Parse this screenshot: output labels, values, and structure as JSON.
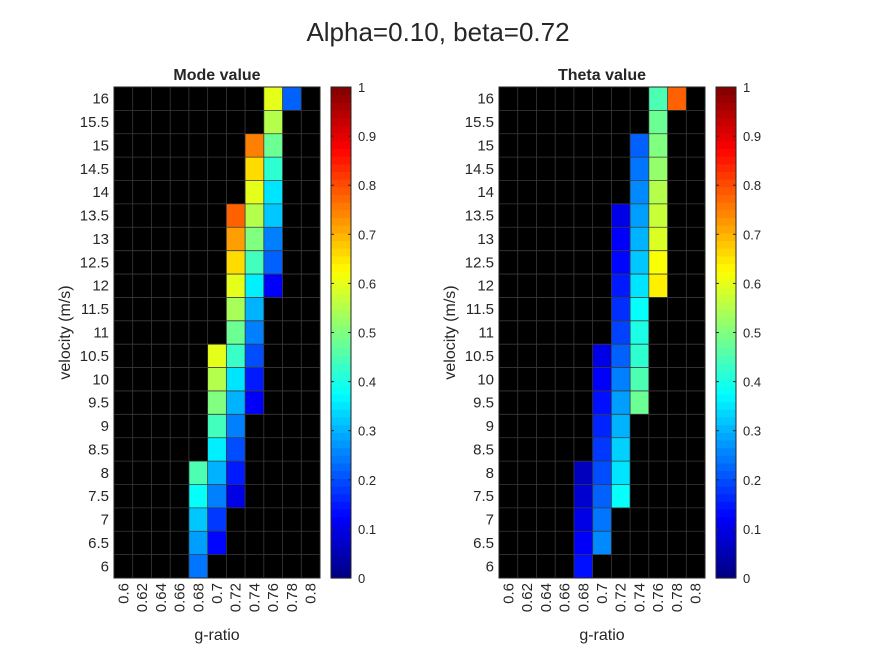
{
  "figure": {
    "suptitle": "Alpha=0.10, beta=0.72"
  },
  "chart_data": [
    {
      "type": "heatmap",
      "title": "Mode value",
      "xlabel": "g-ratio",
      "ylabel": "velocity (m/s)",
      "x_categories": [
        "0.6",
        "0.62",
        "0.64",
        "0.66",
        "0.68",
        "0.7",
        "0.72",
        "0.74",
        "0.76",
        "0.78",
        "0.8"
      ],
      "y_categories": [
        "16",
        "15.5",
        "15",
        "14.5",
        "14",
        "13.5",
        "13",
        "12.5",
        "12",
        "11.5",
        "11",
        "10.5",
        "10",
        "9.5",
        "9",
        "8.5",
        "8",
        "7.5",
        "7",
        "6.5",
        "6"
      ],
      "colorbar": {
        "colormap": "jet",
        "range": [
          0,
          1
        ],
        "ticks": [
          "0",
          "0.1",
          "0.2",
          "0.3",
          "0.4",
          "0.5",
          "0.6",
          "0.7",
          "0.8",
          "0.9",
          "1"
        ]
      },
      "background_color": "#000000",
      "grid": true,
      "cells": [
        {
          "y": "16",
          "x": "0.76",
          "v": 0.6
        },
        {
          "y": "16",
          "x": "0.78",
          "v": 0.22
        },
        {
          "y": "15.5",
          "x": "0.76",
          "v": 0.55
        },
        {
          "y": "15",
          "x": "0.74",
          "v": 0.75
        },
        {
          "y": "15",
          "x": "0.76",
          "v": 0.48
        },
        {
          "y": "14.5",
          "x": "0.74",
          "v": 0.66
        },
        {
          "y": "14.5",
          "x": "0.76",
          "v": 0.42
        },
        {
          "y": "14",
          "x": "0.74",
          "v": 0.6
        },
        {
          "y": "14",
          "x": "0.76",
          "v": 0.35
        },
        {
          "y": "13.5",
          "x": "0.72",
          "v": 0.78
        },
        {
          "y": "13.5",
          "x": "0.74",
          "v": 0.55
        },
        {
          "y": "13.5",
          "x": "0.76",
          "v": 0.32
        },
        {
          "y": "13",
          "x": "0.72",
          "v": 0.72
        },
        {
          "y": "13",
          "x": "0.74",
          "v": 0.5
        },
        {
          "y": "13",
          "x": "0.76",
          "v": 0.25
        },
        {
          "y": "12.5",
          "x": "0.72",
          "v": 0.66
        },
        {
          "y": "12.5",
          "x": "0.74",
          "v": 0.44
        },
        {
          "y": "12.5",
          "x": "0.76",
          "v": 0.22
        },
        {
          "y": "12",
          "x": "0.72",
          "v": 0.6
        },
        {
          "y": "12",
          "x": "0.74",
          "v": 0.36
        },
        {
          "y": "12",
          "x": "0.76",
          "v": 0.12
        },
        {
          "y": "11.5",
          "x": "0.72",
          "v": 0.54
        },
        {
          "y": "11.5",
          "x": "0.74",
          "v": 0.3
        },
        {
          "y": "11",
          "x": "0.72",
          "v": 0.48
        },
        {
          "y": "11",
          "x": "0.74",
          "v": 0.25
        },
        {
          "y": "10.5",
          "x": "0.7",
          "v": 0.6
        },
        {
          "y": "10.5",
          "x": "0.72",
          "v": 0.43
        },
        {
          "y": "10.5",
          "x": "0.74",
          "v": 0.2
        },
        {
          "y": "10",
          "x": "0.7",
          "v": 0.55
        },
        {
          "y": "10",
          "x": "0.72",
          "v": 0.35
        },
        {
          "y": "10",
          "x": "0.74",
          "v": 0.15
        },
        {
          "y": "9.5",
          "x": "0.7",
          "v": 0.5
        },
        {
          "y": "9.5",
          "x": "0.72",
          "v": 0.3
        },
        {
          "y": "9.5",
          "x": "0.74",
          "v": 0.12
        },
        {
          "y": "9",
          "x": "0.7",
          "v": 0.44
        },
        {
          "y": "9",
          "x": "0.72",
          "v": 0.25
        },
        {
          "y": "8.5",
          "x": "0.7",
          "v": 0.36
        },
        {
          "y": "8.5",
          "x": "0.72",
          "v": 0.2
        },
        {
          "y": "8",
          "x": "0.68",
          "v": 0.45
        },
        {
          "y": "8",
          "x": "0.7",
          "v": 0.3
        },
        {
          "y": "8",
          "x": "0.72",
          "v": 0.15
        },
        {
          "y": "7.5",
          "x": "0.68",
          "v": 0.38
        },
        {
          "y": "7.5",
          "x": "0.7",
          "v": 0.25
        },
        {
          "y": "7.5",
          "x": "0.72",
          "v": 0.1
        },
        {
          "y": "7",
          "x": "0.68",
          "v": 0.32
        },
        {
          "y": "7",
          "x": "0.7",
          "v": 0.18
        },
        {
          "y": "6.5",
          "x": "0.68",
          "v": 0.28
        },
        {
          "y": "6.5",
          "x": "0.7",
          "v": 0.13
        },
        {
          "y": "6",
          "x": "0.68",
          "v": 0.24
        }
      ]
    },
    {
      "type": "heatmap",
      "title": "Theta value",
      "xlabel": "g-ratio",
      "ylabel": "velocity (m/s)",
      "x_categories": [
        "0.6",
        "0.62",
        "0.64",
        "0.66",
        "0.68",
        "0.7",
        "0.72",
        "0.74",
        "0.76",
        "0.78",
        "0.8"
      ],
      "y_categories": [
        "16",
        "15.5",
        "15",
        "14.5",
        "14",
        "13.5",
        "13",
        "12.5",
        "12",
        "11.5",
        "11",
        "10.5",
        "10",
        "9.5",
        "9",
        "8.5",
        "8",
        "7.5",
        "7",
        "6.5",
        "6"
      ],
      "colorbar": {
        "colormap": "jet",
        "range": [
          0,
          1
        ],
        "ticks": [
          "0",
          "0.1",
          "0.2",
          "0.3",
          "0.4",
          "0.5",
          "0.6",
          "0.7",
          "0.8",
          "0.9",
          "1"
        ]
      },
      "background_color": "#000000",
      "grid": true,
      "cells": [
        {
          "y": "16",
          "x": "0.76",
          "v": 0.45
        },
        {
          "y": "16",
          "x": "0.78",
          "v": 0.78
        },
        {
          "y": "15.5",
          "x": "0.76",
          "v": 0.48
        },
        {
          "y": "15",
          "x": "0.74",
          "v": 0.22
        },
        {
          "y": "15",
          "x": "0.76",
          "v": 0.5
        },
        {
          "y": "14.5",
          "x": "0.74",
          "v": 0.24
        },
        {
          "y": "14.5",
          "x": "0.76",
          "v": 0.52
        },
        {
          "y": "14",
          "x": "0.74",
          "v": 0.26
        },
        {
          "y": "14",
          "x": "0.76",
          "v": 0.55
        },
        {
          "y": "13.5",
          "x": "0.72",
          "v": 0.1
        },
        {
          "y": "13.5",
          "x": "0.74",
          "v": 0.28
        },
        {
          "y": "13.5",
          "x": "0.76",
          "v": 0.57
        },
        {
          "y": "13",
          "x": "0.72",
          "v": 0.12
        },
        {
          "y": "13",
          "x": "0.74",
          "v": 0.3
        },
        {
          "y": "13",
          "x": "0.76",
          "v": 0.59
        },
        {
          "y": "12.5",
          "x": "0.72",
          "v": 0.13
        },
        {
          "y": "12.5",
          "x": "0.74",
          "v": 0.32
        },
        {
          "y": "12.5",
          "x": "0.76",
          "v": 0.62
        },
        {
          "y": "12",
          "x": "0.72",
          "v": 0.15
        },
        {
          "y": "12",
          "x": "0.74",
          "v": 0.35
        },
        {
          "y": "12",
          "x": "0.76",
          "v": 0.64
        },
        {
          "y": "11.5",
          "x": "0.72",
          "v": 0.17
        },
        {
          "y": "11.5",
          "x": "0.74",
          "v": 0.38
        },
        {
          "y": "11",
          "x": "0.72",
          "v": 0.19
        },
        {
          "y": "11",
          "x": "0.74",
          "v": 0.4
        },
        {
          "y": "10.5",
          "x": "0.7",
          "v": 0.1
        },
        {
          "y": "10.5",
          "x": "0.72",
          "v": 0.22
        },
        {
          "y": "10.5",
          "x": "0.74",
          "v": 0.42
        },
        {
          "y": "10",
          "x": "0.7",
          "v": 0.12
        },
        {
          "y": "10",
          "x": "0.72",
          "v": 0.25
        },
        {
          "y": "10",
          "x": "0.74",
          "v": 0.45
        },
        {
          "y": "9.5",
          "x": "0.7",
          "v": 0.14
        },
        {
          "y": "9.5",
          "x": "0.72",
          "v": 0.28
        },
        {
          "y": "9.5",
          "x": "0.74",
          "v": 0.48
        },
        {
          "y": "9",
          "x": "0.7",
          "v": 0.16
        },
        {
          "y": "9",
          "x": "0.72",
          "v": 0.3
        },
        {
          "y": "8.5",
          "x": "0.7",
          "v": 0.18
        },
        {
          "y": "8.5",
          "x": "0.72",
          "v": 0.33
        },
        {
          "y": "8",
          "x": "0.68",
          "v": 0.06
        },
        {
          "y": "8",
          "x": "0.7",
          "v": 0.2
        },
        {
          "y": "8",
          "x": "0.72",
          "v": 0.35
        },
        {
          "y": "7.5",
          "x": "0.68",
          "v": 0.08
        },
        {
          "y": "7.5",
          "x": "0.7",
          "v": 0.22
        },
        {
          "y": "7.5",
          "x": "0.72",
          "v": 0.38
        },
        {
          "y": "7",
          "x": "0.68",
          "v": 0.1
        },
        {
          "y": "7",
          "x": "0.7",
          "v": 0.24
        },
        {
          "y": "6.5",
          "x": "0.68",
          "v": 0.12
        },
        {
          "y": "6.5",
          "x": "0.7",
          "v": 0.26
        },
        {
          "y": "6",
          "x": "0.68",
          "v": 0.14
        }
      ]
    }
  ]
}
